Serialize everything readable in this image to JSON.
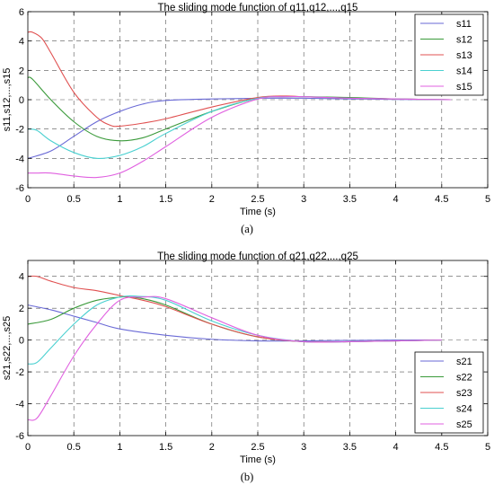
{
  "chart_data": [
    {
      "type": "line",
      "title": "The sliding mode function of q11,q12,...,q15",
      "xlabel": "Time (s)",
      "ylabel": "s11,s12,...,s15",
      "caption": "(a)",
      "xlim": [
        0,
        5
      ],
      "ylim": [
        -6,
        6
      ],
      "xticks": [
        0,
        0.5,
        1,
        1.5,
        2,
        2.5,
        3,
        3.5,
        4,
        4.5,
        5
      ],
      "xtick_labels": [
        "0",
        "0.5",
        "1",
        "1.5",
        "2",
        "2.5",
        "3",
        "3.5",
        "4",
        "4.5",
        "5"
      ],
      "yticks": [
        -6,
        -4,
        -2,
        0,
        2,
        4,
        6
      ],
      "ytick_labels": [
        "-6",
        "-4",
        "-2",
        "0",
        "2",
        "4",
        "6"
      ],
      "grid": true,
      "legend_position": "top-right",
      "series": [
        {
          "name": "s11",
          "color": "#6a6ad6",
          "x": [
            0,
            0.25,
            0.5,
            0.75,
            1,
            1.25,
            1.5,
            2,
            2.5,
            3,
            3.5,
            4,
            4.6
          ],
          "y": [
            -4,
            -3.5,
            -2.5,
            -1.5,
            -0.8,
            -0.3,
            -0.05,
            0.05,
            0.1,
            0.1,
            0.05,
            0.02,
            0
          ]
        },
        {
          "name": "s12",
          "color": "#3a9a3a",
          "x": [
            0,
            0.05,
            0.25,
            0.5,
            0.75,
            1,
            1.25,
            1.5,
            2,
            2.5,
            2.8,
            3,
            3.5,
            4,
            4.6
          ],
          "y": [
            1.5,
            1.4,
            0,
            -1.5,
            -2.5,
            -2.8,
            -2.6,
            -2,
            -0.8,
            0.1,
            0.2,
            0.2,
            0.15,
            0.05,
            0
          ]
        },
        {
          "name": "s13",
          "color": "#e05050",
          "x": [
            0,
            0.05,
            0.15,
            0.25,
            0.5,
            0.75,
            0.9,
            1,
            1.25,
            1.5,
            2,
            2.5,
            2.8,
            3,
            3.5,
            4,
            4.6
          ],
          "y": [
            4.6,
            4.6,
            4.2,
            3.2,
            0.5,
            -1.2,
            -1.75,
            -1.8,
            -1.6,
            -1.3,
            -0.5,
            0.15,
            0.25,
            0.2,
            0.1,
            0.05,
            0
          ]
        },
        {
          "name": "s14",
          "color": "#4ad0d0",
          "x": [
            0,
            0.1,
            0.25,
            0.5,
            0.75,
            1,
            1.25,
            1.5,
            2,
            2.5,
            2.8,
            3,
            3.5,
            4,
            4.6
          ],
          "y": [
            -2,
            -2.1,
            -2.8,
            -3.6,
            -4,
            -3.8,
            -3.2,
            -2.3,
            -0.8,
            0.1,
            0.2,
            0.2,
            0.1,
            0.05,
            0
          ]
        },
        {
          "name": "s15",
          "color": "#e060e0",
          "x": [
            0,
            0.1,
            0.25,
            0.5,
            0.75,
            1,
            1.25,
            1.5,
            2,
            2.5,
            2.8,
            3,
            3.5,
            4,
            4.6
          ],
          "y": [
            -5,
            -5,
            -5,
            -5.2,
            -5.3,
            -5,
            -4.2,
            -3.2,
            -1.2,
            0.05,
            0.2,
            0.2,
            0.1,
            0.05,
            0
          ]
        }
      ]
    },
    {
      "type": "line",
      "title": "The sliding mode function of q21,q22,...,q25",
      "xlabel": "Time (s)",
      "ylabel": "s21,s22,...,s25",
      "caption": "(b)",
      "xlim": [
        0,
        5
      ],
      "ylim": [
        -6,
        5
      ],
      "xticks": [
        0,
        0.5,
        1,
        1.5,
        2,
        2.5,
        3,
        3.5,
        4,
        4.5,
        5
      ],
      "xtick_labels": [
        "0",
        "0.5",
        "1",
        "1.5",
        "2",
        "2.5",
        "3",
        "3.5",
        "4",
        "4.5",
        "5"
      ],
      "yticks": [
        -6,
        -4,
        -2,
        0,
        2,
        4
      ],
      "ytick_labels": [
        "-6",
        "-4",
        "-2",
        "0",
        "2",
        "4"
      ],
      "grid": true,
      "legend_position": "bottom-right",
      "series": [
        {
          "name": "s21",
          "color": "#6a6ad6",
          "x": [
            0,
            0.25,
            0.5,
            0.75,
            1,
            1.5,
            2,
            2.5,
            3,
            3.5,
            4,
            4.5
          ],
          "y": [
            2.2,
            1.9,
            1.5,
            1.1,
            0.7,
            0.3,
            0.05,
            -0.05,
            -0.05,
            -0.02,
            0,
            0
          ]
        },
        {
          "name": "s22",
          "color": "#3a9a3a",
          "x": [
            0,
            0.25,
            0.5,
            0.75,
            1,
            1.1,
            1.25,
            1.5,
            2,
            2.5,
            3,
            3.5,
            4,
            4.5
          ],
          "y": [
            1,
            1.3,
            2,
            2.5,
            2.7,
            2.7,
            2.6,
            2.2,
            1,
            0.2,
            -0.1,
            -0.1,
            -0.05,
            0
          ]
        },
        {
          "name": "s23",
          "color": "#e05050",
          "x": [
            0,
            0.1,
            0.25,
            0.5,
            0.75,
            1,
            1.25,
            1.5,
            2,
            2.5,
            3,
            3.5,
            4,
            4.5
          ],
          "y": [
            4,
            4,
            3.7,
            3.3,
            3.1,
            2.8,
            2.5,
            2.1,
            1,
            0.2,
            -0.1,
            -0.1,
            -0.05,
            0
          ]
        },
        {
          "name": "s24",
          "color": "#4ad0d0",
          "x": [
            0,
            0.1,
            0.25,
            0.5,
            0.75,
            1,
            1.2,
            1.5,
            2,
            2.5,
            3,
            3.5,
            4,
            4.5
          ],
          "y": [
            -1.5,
            -1.4,
            -0.5,
            1,
            2.2,
            2.7,
            2.75,
            2.5,
            1.2,
            0.3,
            -0.1,
            -0.1,
            -0.05,
            0
          ]
        },
        {
          "name": "s25",
          "color": "#e060e0",
          "x": [
            0,
            0.1,
            0.25,
            0.5,
            0.75,
            1,
            1.25,
            1.5,
            2,
            2.5,
            3,
            3.5,
            4,
            4.5
          ],
          "y": [
            -5,
            -4.9,
            -3.5,
            -1,
            1,
            2.5,
            2.7,
            2.6,
            1.4,
            0.3,
            -0.1,
            -0.1,
            -0.05,
            0
          ]
        }
      ]
    }
  ]
}
